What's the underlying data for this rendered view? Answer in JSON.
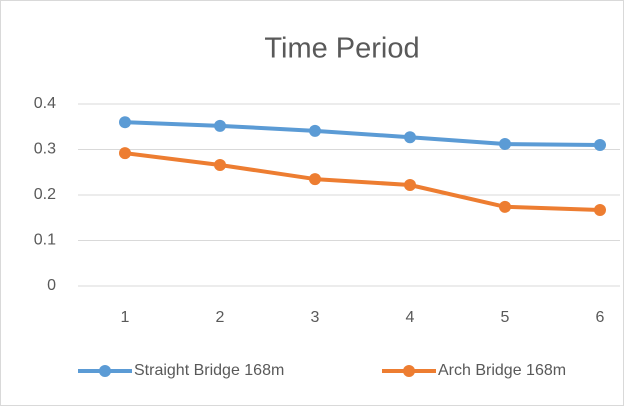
{
  "chart_data": {
    "type": "line",
    "title": "Time Period",
    "categories": [
      "1",
      "2",
      "3",
      "4",
      "5",
      "6"
    ],
    "series": [
      {
        "name": "Straight Bridge 168m",
        "color": "#5b9bd5",
        "values": [
          0.36,
          0.352,
          0.341,
          0.327,
          0.312,
          0.31
        ]
      },
      {
        "name": "Arch Bridge 168m",
        "color": "#ed7d31",
        "values": [
          0.292,
          0.266,
          0.235,
          0.222,
          0.174,
          0.167
        ]
      }
    ],
    "ylim": [
      0,
      0.4
    ],
    "yticks": [
      0,
      0.1,
      0.2,
      0.3,
      0.4
    ],
    "grid": true,
    "legend": "bottom"
  }
}
